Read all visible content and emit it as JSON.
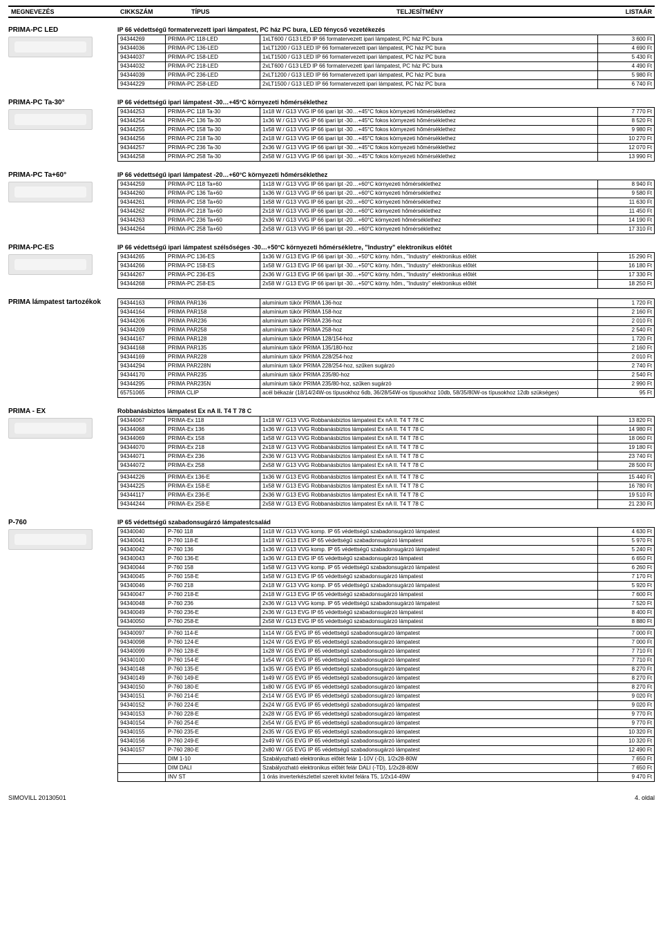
{
  "header": {
    "c1": "MEGNEVEZÉS",
    "c2": "CIKKSZÁM",
    "c3": "TÍPUS",
    "c4": "TELJESÍTMÉNY",
    "c5": "LISTAÁR"
  },
  "footer": {
    "left": "SIMOVILL 20130501",
    "right": "4. oldal"
  },
  "sections": [
    {
      "title": "PRIMA-PC LED",
      "sub": "IP 66 védettségű formatervezett ipari lámpatest, PC ház PC bura, LED fénycső vezetékezés",
      "thumb": true,
      "rows": [
        [
          "94344269",
          "PRIMA-PC 118-LED",
          "1xLT600 / G13 LED IP 66 formatervezett ipari lámpatest, PC ház PC bura",
          "3 600 Ft"
        ],
        [
          "94344036",
          "PRIMA-PC 136-LED",
          "1xLT1200 / G13 LED IP 66 formatervezett ipari lámpatest, PC ház PC bura",
          "4 690 Ft"
        ],
        [
          "94344037",
          "PRIMA-PC 158-LED",
          "1xLT1500 / G13 LED IP 66 formatervezett ipari lámpatest, PC ház PC bura",
          "5 430 Ft"
        ],
        [
          "94344032",
          "PRIMA-PC 218-LED",
          "2xLT600 / G13 LED IP 66 formatervezett ipari lámpatest, PC ház PC bura",
          "4 490 Ft"
        ],
        [
          "94344039",
          "PRIMA-PC 236-LED",
          "2xLT1200 / G13 LED IP 66 formatervezett ipari lámpatest, PC ház PC bura",
          "5 980 Ft"
        ],
        [
          "94344229",
          "PRIMA-PC 258-LED",
          "2xLT1500 / G13 LED IP 66 formatervezett ipari lámpatest, PC ház PC bura",
          "6 740 Ft"
        ]
      ]
    },
    {
      "title": "PRIMA-PC Ta-30°",
      "sub": "IP 66 védettségű ipari lámpatest -30…+45°C környezeti hőmérséklethez",
      "thumb": true,
      "rows": [
        [
          "94344253",
          "PRIMA-PC 118 Ta-30",
          "1x18 W / G13 VVG IP 66 ipari lpt -30…+45°C fokos környezeti hőmérséklethez",
          "7 770 Ft"
        ],
        [
          "94344254",
          "PRIMA-PC 136 Ta-30",
          "1x36 W / G13 VVG IP 66 ipari lpt -30…+45°C fokos környezeti hőmérséklethez",
          "8 520 Ft"
        ],
        [
          "94344255",
          "PRIMA-PC 158 Ta-30",
          "1x58 W / G13 VVG IP 66 ipari lpt -30…+45°C fokos környezeti hőmérséklethez",
          "9 980 Ft"
        ],
        [
          "94344256",
          "PRIMA-PC 218 Ta-30",
          "2x18 W / G13 VVG IP 66 ipari lpt -30…+45°C fokos környezeti hőmérséklethez",
          "10 270 Ft"
        ],
        [
          "94344257",
          "PRIMA-PC 236 Ta-30",
          "2x36 W / G13 VVG IP 66 ipari lpt -30…+45°C fokos környezeti hőmérséklethez",
          "12 070 Ft"
        ],
        [
          "94344258",
          "PRIMA-PC 258 Ta-30",
          "2x58 W / G13 VVG IP 66 ipari lpt -30…+45°C fokos környezeti hőmérséklethez",
          "13 990 Ft"
        ]
      ]
    },
    {
      "title": "PRIMA-PC Ta+60°",
      "sub": "IP 66 védettségű ipari lámpatest -20…+60°C környezeti hőmérséklethez",
      "thumb": true,
      "rows": [
        [
          "94344259",
          "PRIMA-PC 118 Ta+60",
          "1x18 W / G13 VVG IP 66 ipari lpt -20…+60°C környezeti hőmérséklethez",
          "8 940 Ft"
        ],
        [
          "94344260",
          "PRIMA-PC 136 Ta+60",
          "1x36 W / G13 VVG IP 66 ipari lpt -20…+60°C környezeti hőmérséklethez",
          "9 580 Ft"
        ],
        [
          "94344261",
          "PRIMA-PC 158 Ta+60",
          "1x58 W / G13 VVG IP 66 ipari lpt -20…+60°C környezeti hőmérséklethez",
          "11 630 Ft"
        ],
        [
          "94344262",
          "PRIMA-PC 218 Ta+60",
          "2x18 W / G13 VVG IP 66 ipari lpt -20…+60°C környezeti hőmérséklethez",
          "11 450 Ft"
        ],
        [
          "94344263",
          "PRIMA-PC 236 Ta+60",
          "2x36 W / G13 VVG IP 66 ipari lpt -20…+60°C környezeti hőmérséklethez",
          "14 190 Ft"
        ],
        [
          "94344264",
          "PRIMA-PC 258 Ta+60",
          "2x58 W / G13 VVG IP 66 ipari lpt -20…+60°C környezeti hőmérséklethez",
          "17 310 Ft"
        ]
      ]
    },
    {
      "title": "PRIMA-PC-ES",
      "sub": "IP 66 védettségű ipari lámpatest szélsőséges -30…+50°C környezeti hőmérsékletre, \"Industry\" elektronikus előtét",
      "thumb": true,
      "rows": [
        [
          "94344265",
          "PRIMA-PC 136-ES",
          "1x36 W / G13 EVG IP 66 ipari lpt -30…+50°C körny. hőm., \"Industry\" elektronikus előtét",
          "15 290 Ft"
        ],
        [
          "94344266",
          "PRIMA-PC 158-ES",
          "1x58 W / G13 EVG IP 66 ipari lpt -30…+50°C körny. hőm., \"Industry\" elektronikus előtét",
          "16 180 Ft"
        ],
        [
          "94344267",
          "PRIMA-PC 236-ES",
          "2x36 W / G13 EVG IP 66 ipari lpt -30…+50°C körny. hőm., \"Industry\" elektronikus előtét",
          "17 330 Ft"
        ],
        [
          "94344268",
          "PRIMA-PC 258-ES",
          "2x58 W / G13 EVG IP 66 ipari lpt -30…+50°C körny. hőm., \"Industry\" elektronikus előtét",
          "18 250 Ft"
        ]
      ]
    },
    {
      "title": "PRIMA lámpatest tartozékok",
      "sub": "",
      "thumb": false,
      "rows": [
        [
          "94344163",
          "PRIMA PAR136",
          "alumínium tükör PRIMA 136-hoz",
          "1 720 Ft"
        ],
        [
          "94344164",
          "PRIMA PAR158",
          "alumínium tükör PRIMA 158-hoz",
          "2 160 Ft"
        ],
        [
          "94344206",
          "PRIMA PAR236",
          "alumínium tükör PRIMA 236-hoz",
          "2 010 Ft"
        ],
        [
          "94344209",
          "PRIMA PAR258",
          "alumínium tükör PRIMA 258-hoz",
          "2 540 Ft"
        ],
        [
          "94344167",
          "PRIMA PAR128",
          "alumínium tükör PRIMA 128/154-hoz",
          "1 720 Ft"
        ],
        [
          "94344168",
          "PRIMA PAR135",
          "alumínium tükör PRIMA 135/180-hoz",
          "2 160 Ft"
        ],
        [
          "94344169",
          "PRIMA PAR228",
          "alumínium tükör PRIMA 228/254-hoz",
          "2 010 Ft"
        ],
        [
          "94344294",
          "PRIMA PAR228N",
          "alumínium tükör PRIMA 228/254-hoz, szűken sugárzó",
          "2 740 Ft"
        ],
        [
          "94344170",
          "PRIMA PAR235",
          "alumínium tükör PRIMA 235/80-hoz",
          "2 540 Ft"
        ],
        [
          "94344295",
          "PRIMA PAR235N",
          "alumínium tükör PRIMA 235/80-hoz, szűken sugárzó",
          "2 990 Ft"
        ],
        [
          "65751065",
          "PRIMA CLIP",
          "acél békazár (18/14/24W-os típusokhoz 6db, 36/28/54W-os típusokhoz 10db, 58/35/80W-os típusokhoz 12db szükséges)",
          "95 Ft"
        ]
      ]
    },
    {
      "title": "PRIMA - EX",
      "sub": "Robbanásbiztos lámpatest Ex nA II. T4  T 78 C",
      "thumb": true,
      "rows": [
        [
          "94344067",
          "PRIMA-Ex 118",
          "1x18 W / G13 VVG Robbanásbiztos lámpatest Ex nA II. T4  T 78 C",
          "13 820 Ft"
        ],
        [
          "94344068",
          "PRIMA-Ex 136",
          "1x36 W / G13 VVG Robbanásbiztos lámpatest Ex nA II. T4  T 78 C",
          "14 980 Ft"
        ],
        [
          "94344069",
          "PRIMA-Ex 158",
          "1x58 W / G13 VVG Robbanásbiztos lámpatest Ex nA II. T4  T 78 C",
          "18 060 Ft"
        ],
        [
          "94344070",
          "PRIMA-Ex 218",
          "2x18 W / G13 VVG Robbanásbiztos lámpatest Ex nA II. T4  T 78 C",
          "19 180 Ft"
        ],
        [
          "94344071",
          "PRIMA-Ex 236",
          "2x36 W / G13 VVG Robbanásbiztos lámpatest Ex nA II. T4  T 78 C",
          "23 740 Ft"
        ],
        [
          "94344072",
          "PRIMA-Ex 258",
          "2x58 W / G13 VVG Robbanásbiztos lámpatest Ex nA II. T4  T 78 C",
          "28 500 Ft"
        ],
        "GAP",
        [
          "94344226",
          "PRIMA-Ex 136-E",
          "1x36 W / G13 EVG Robbanásbiztos lámpatest Ex nA II. T4  T 78 C",
          "15 440 Ft"
        ],
        [
          "94344225",
          "PRIMA-Ex 158-E",
          "1x58 W / G13 EVG Robbanásbiztos lámpatest Ex nA II. T4  T 78 C",
          "16 780 Ft"
        ],
        [
          "94344117",
          "PRIMA-Ex 236-E",
          "2x36 W / G13 EVG Robbanásbiztos lámpatest Ex nA II. T4  T 78 C",
          "19 510 Ft"
        ],
        [
          "94344244",
          "PRIMA-Ex 258-E",
          "2x58 W / G13 EVG Robbanásbiztos lámpatest Ex nA II. T4  T 78 C",
          "21 230 Ft"
        ]
      ]
    },
    {
      "title": "P-760",
      "sub": "IP 65 védettségű szabadonsugárzó lámpatestcsalád",
      "thumb": true,
      "rows": [
        [
          "94340040",
          "P-760 118",
          "1x18 W / G13 VVG komp. IP 65 védettségű szabadonsugárzó lámpatest",
          "4 630 Ft"
        ],
        [
          "94340041",
          "P-760 118-E",
          "1x18 W / G13 EVG IP 65 védettségű szabadonsugárzó lámpatest",
          "5 970 Ft"
        ],
        [
          "94340042",
          "P-760 136",
          "1x36 W / G13 VVG komp. IP 65 védettségű szabadonsugárzó lámpatest",
          "5 240 Ft"
        ],
        [
          "94340043",
          "P-760 136-E",
          "1x36 W / G13 EVG IP 65 védettségű szabadonsugárzó lámpatest",
          "6 650 Ft"
        ],
        [
          "94340044",
          "P-760 158",
          "1x58 W / G13 VVG komp. IP 65 védettségű szabadonsugárzó lámpatest",
          "6 260 Ft"
        ],
        [
          "94340045",
          "P-760 158-E",
          "1x58 W / G13 EVG IP 65 védettségű szabadonsugárzó lámpatest",
          "7 170 Ft"
        ],
        [
          "94340046",
          "P-760 218",
          "2x18 W / G13 VVG komp. IP 65 védettségű szabadonsugárzó lámpatest",
          "5 920 Ft"
        ],
        [
          "94340047",
          "P-760 218-E",
          "2x18 W / G13 EVG IP 65 védettségű szabadonsugárzó lámpatest",
          "7 600 Ft"
        ],
        [
          "94340048",
          "P-760 236",
          "2x36 W / G13 VVG komp. IP 65 védettségű szabadonsugárzó lámpatest",
          "7 520 Ft"
        ],
        [
          "94340049",
          "P-760 236-E",
          "2x36 W / G13 EVG IP 65 védettségű szabadonsugárzó lámpatest",
          "8 400 Ft"
        ],
        [
          "94340050",
          "P-760 258-E",
          "2x58 W / G13 EVG IP 65 védettségű szabadonsugárzó lámpatest",
          "8 880 Ft"
        ],
        "GAP",
        [
          "94340097",
          "P-760 114-E",
          "1x14 W / G5 EVG IP 65 védettségű szabadonsugárzó lámpatest",
          "7 000 Ft"
        ],
        [
          "94340098",
          "P-760 124-E",
          "1x24 W / G5 EVG IP 65 védettségű szabadonsugárzó lámpatest",
          "7 000 Ft"
        ],
        [
          "94340099",
          "P-760 128-E",
          "1x28 W / G5 EVG IP 65 védettségű szabadonsugárzó lámpatest",
          "7 710 Ft"
        ],
        [
          "94340100",
          "P-760 154-E",
          "1x54 W / G5 EVG IP 65 védettségű szabadonsugárzó lámpatest",
          "7 710 Ft"
        ],
        [
          "94340148",
          "P-760 135-E",
          "1x35 W / G5 EVG IP 65 védettségű szabadonsugárzó lámpatest",
          "8 270 Ft"
        ],
        [
          "94340149",
          "P-760 149-E",
          "1x49 W / G5 EVG IP 65 védettségű szabadonsugárzó lámpatest",
          "8 270 Ft"
        ],
        [
          "94340150",
          "P-760 180-E",
          "1x80 W / G5 EVG IP 65 védettségű szabadonsugárzó lámpatest",
          "8 270 Ft"
        ],
        [
          "94340151",
          "P-760 214-E",
          "2x14 W / G5 EVG IP 65 védettségű szabadonsugárzó lámpatest",
          "9 020 Ft"
        ],
        [
          "94340152",
          "P-760 224-E",
          "2x24 W / G5 EVG IP 65 védettségű szabadonsugárzó lámpatest",
          "9 020 Ft"
        ],
        [
          "94340153",
          "P-760 228-E",
          "2x28 W / G5 EVG IP 65 védettségű szabadonsugárzó lámpatest",
          "9 770 Ft"
        ],
        [
          "94340154",
          "P-760 254-E",
          "2x54 W / G5 EVG IP 65 védettségű szabadonsugárzó lámpatest",
          "9 770 Ft"
        ],
        [
          "94340155",
          "P-760 235-E",
          "2x35 W / G5 EVG IP 65 védettségű szabadonsugárzó lámpatest",
          "10 320 Ft"
        ],
        [
          "94340156",
          "P-760 249-E",
          "2x49 W / G5 EVG IP 65 védettségű szabadonsugárzó lámpatest",
          "10 320 Ft"
        ],
        [
          "94340157",
          "P-760 280-E",
          "2x80 W / G5 EVG IP 65 védettségű szabadonsugárzó lámpatest",
          "12 490 Ft"
        ],
        [
          "",
          "DIM 1-10",
          "Szabályozható elektronikus előtét felár 1-10V (-D), 1/2x28-80W",
          "7 650 Ft"
        ],
        [
          "",
          "DIM DALI",
          "Szabályozható elektronikus előtét felár DALI (-TD), 1/2x28-80W",
          "7 650 Ft"
        ],
        [
          "",
          "INV ST",
          "1 órás inverterkészlettel szerelt kivitel felára T5, 1/2x14-49W",
          "9 470 Ft"
        ]
      ]
    }
  ]
}
